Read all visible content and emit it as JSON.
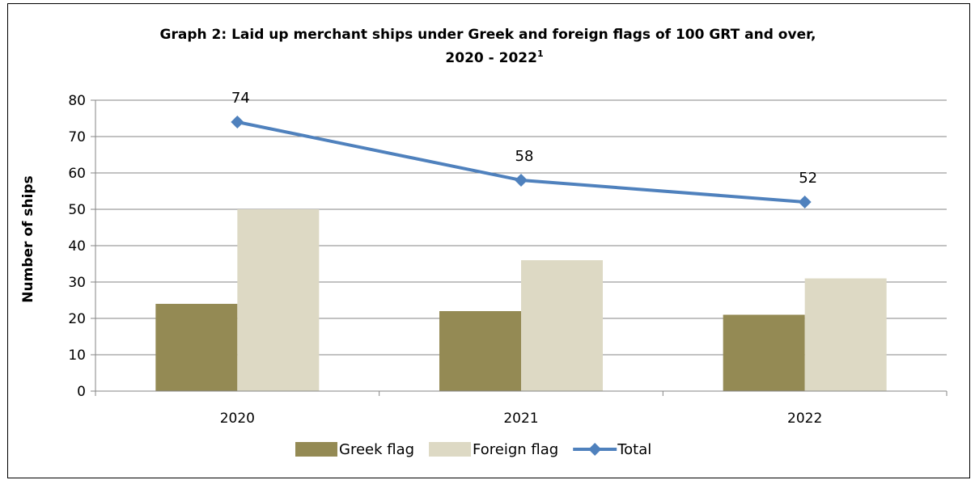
{
  "chart_data": {
    "type": "bar+line",
    "title_line1": "Graph 2: Laid up merchant ships under Greek and foreign flags of 100 GRT and over,",
    "title_line2": "2020 - 2022",
    "title_superscript": "1",
    "ylabel": "Number of ships",
    "xlabel": "",
    "ylim": [
      0,
      80
    ],
    "yticks": [
      0,
      10,
      20,
      30,
      40,
      50,
      60,
      70,
      80
    ],
    "grid": true,
    "legend_position": "bottom",
    "categories": [
      "2020",
      "2021",
      "2022"
    ],
    "series": [
      {
        "name": "Greek flag",
        "kind": "bar",
        "color": "#948A54",
        "values": [
          24,
          22,
          21
        ]
      },
      {
        "name": "Foreign flag",
        "kind": "bar",
        "color": "#DDD9C4",
        "values": [
          50,
          36,
          31
        ]
      },
      {
        "name": "Total",
        "kind": "line",
        "color": "#4F81BD",
        "marker": "diamond",
        "values": [
          74,
          58,
          52
        ],
        "data_labels": [
          "74",
          "58",
          "52"
        ]
      }
    ]
  }
}
